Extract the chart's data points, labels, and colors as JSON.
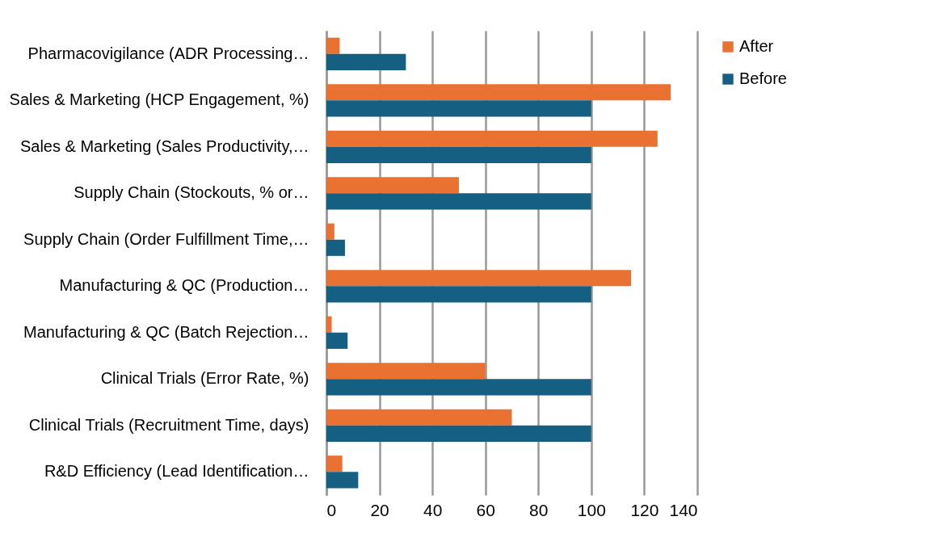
{
  "chart_data": {
    "type": "bar",
    "orientation": "horizontal",
    "categories": [
      "Pharmacovigilance (ADR Processing…",
      "Sales & Marketing (HCP Engagement, %)",
      "Sales & Marketing (Sales Productivity,…",
      "Supply Chain (Stockouts, % or…",
      "Supply Chain (Order Fulfillment Time,…",
      "Manufacturing & QC (Production…",
      "Manufacturing & QC (Batch Rejection…",
      "Clinical Trials (Error Rate, %)",
      "Clinical Trials (Recruitment Time, days)",
      "R&D Efficiency (Lead Identification…"
    ],
    "series": [
      {
        "name": "After",
        "color": "#e97132",
        "values": [
          5,
          130,
          125,
          50,
          3,
          115,
          2,
          60,
          70,
          6
        ]
      },
      {
        "name": "Before",
        "color": "#156082",
        "values": [
          30,
          100,
          100,
          100,
          7,
          100,
          8,
          100,
          100,
          12
        ]
      }
    ],
    "xlim": [
      0,
      140
    ],
    "xticks": [
      0,
      20,
      40,
      60,
      80,
      100,
      120,
      140
    ],
    "grid": "x",
    "legend": "right"
  }
}
